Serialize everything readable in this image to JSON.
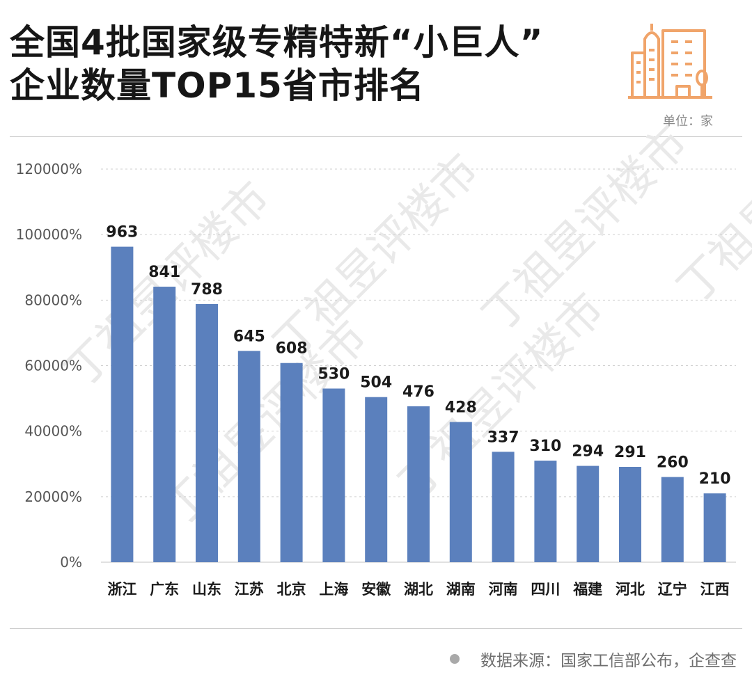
{
  "title_lines": [
    "全国4批国家级专精特新“小巨人”",
    "企业数量TOP15省市排名"
  ],
  "unit_label": "单位：家",
  "source_text": "数据来源：国家工信部公布，企查查",
  "icon": "building-icon",
  "colors": {
    "bar": "#5b80bd",
    "accent_icon": "#f0a46a",
    "grid": "#cfcfcf"
  },
  "watermark_text": "丁祖昱评楼市",
  "chart_data": {
    "type": "bar",
    "title": "全国4批国家级专精特新“小巨人”企业数量TOP15省市排名",
    "xlabel": "",
    "ylabel": "",
    "categories": [
      "浙江",
      "广东",
      "山东",
      "江苏",
      "北京",
      "上海",
      "安徽",
      "湖北",
      "湖南",
      "河南",
      "四川",
      "福建",
      "河北",
      "辽宁",
      "江西"
    ],
    "values": [
      963,
      841,
      788,
      645,
      608,
      530,
      504,
      476,
      428,
      337,
      310,
      294,
      291,
      260,
      210
    ],
    "ylim": [
      0,
      1200
    ],
    "yticks": [
      0,
      200,
      400,
      600,
      800,
      1000,
      1200
    ],
    "ytick_labels": [
      "0%",
      "20000%",
      "40000%",
      "60000%",
      "80000%",
      "100000%",
      "120000%"
    ],
    "grid": true,
    "legend": "none"
  }
}
